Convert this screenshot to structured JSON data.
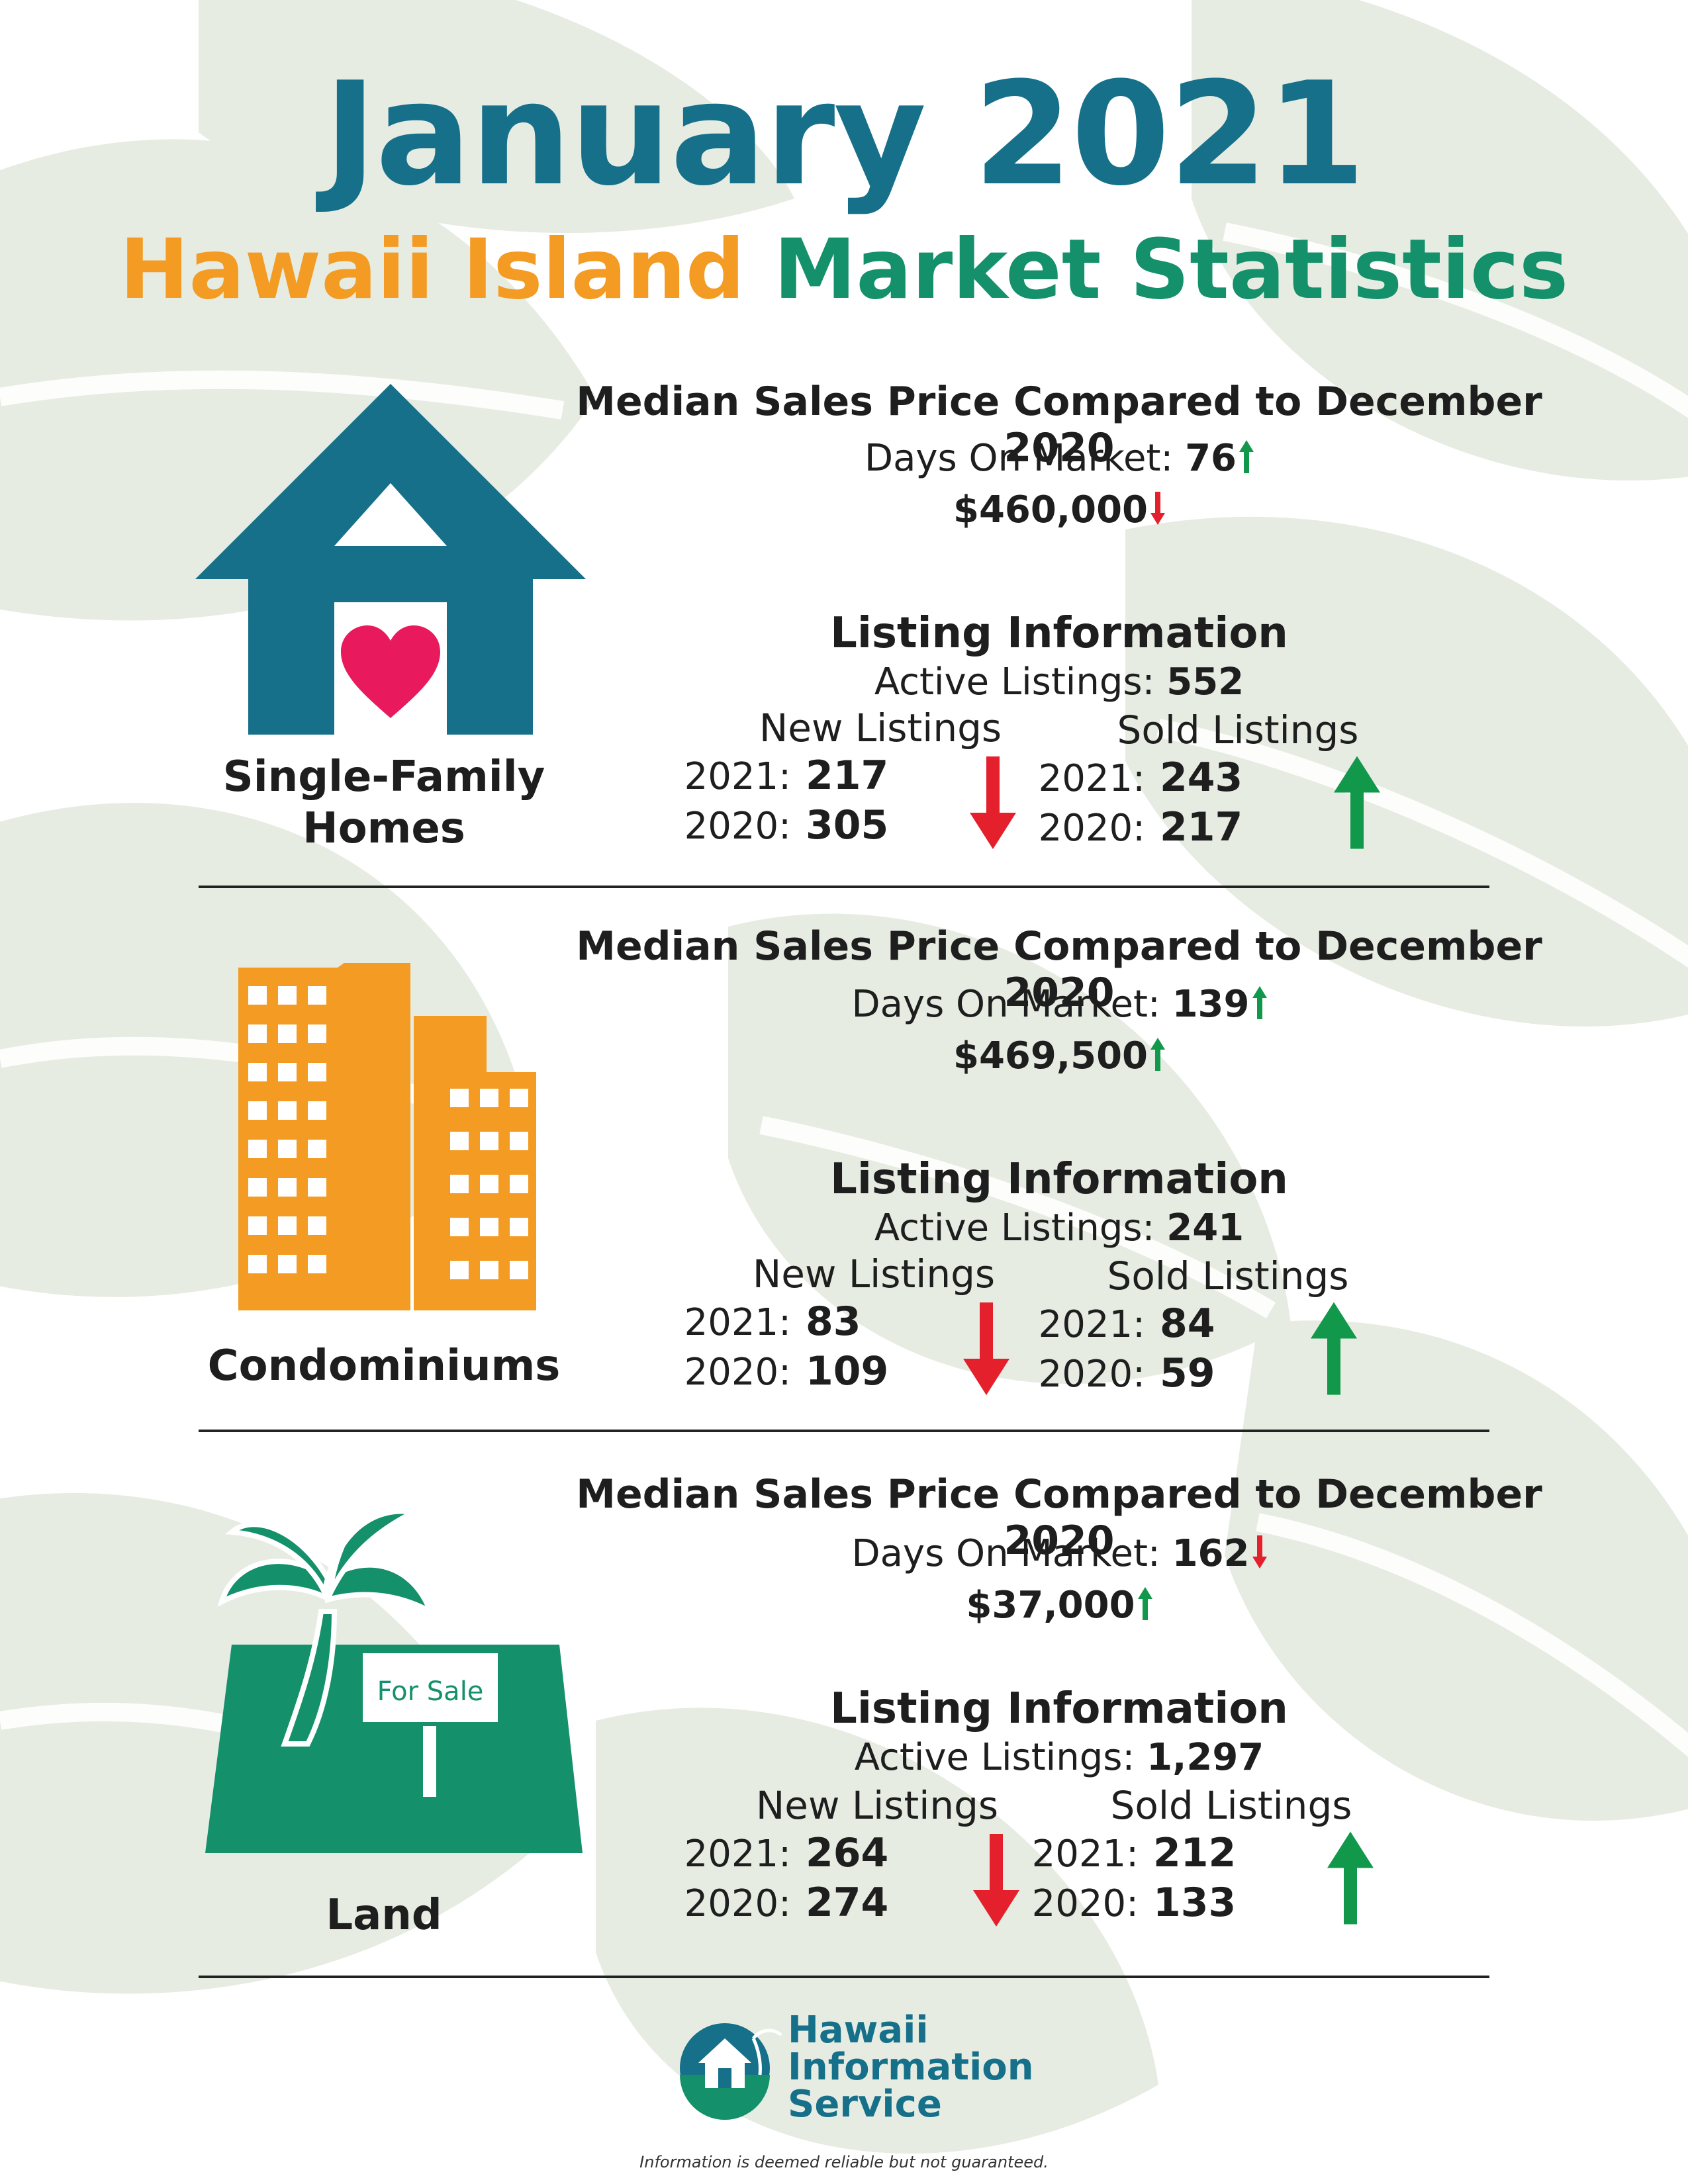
{
  "header": {
    "title": "January 2021",
    "subtitle_part1": "Hawaii Island",
    "subtitle_part2": "Market Statistics"
  },
  "colors": {
    "title_blue": "#17708a",
    "orange": "#f39b22",
    "green": "#14906b",
    "arrow_up": "#12984a",
    "arrow_down": "#e3202c",
    "heart": "#e9195e"
  },
  "sections": [
    {
      "category": "Single-Family Homes",
      "category_line1": "Single-Family",
      "category_line2": "Homes",
      "icon": "house-icon",
      "median_title": "Median Sales Price Compared to December 2020",
      "days_on_market_label": "Days On Market:",
      "days_on_market_value": "76",
      "days_on_market_trend": "up",
      "median_price": "$460,000",
      "median_price_trend": "down",
      "listing_title": "Listing Information",
      "active_label": "Active Listings:",
      "active_value": "552",
      "new_listings": {
        "label": "New Listings",
        "year1": "2021:",
        "value1": "217",
        "year2": "2020:",
        "value2": "305",
        "trend": "down"
      },
      "sold_listings": {
        "label": "Sold Listings",
        "year1": "2021:",
        "value1": "243",
        "year2": "2020:",
        "value2": "217",
        "trend": "up"
      }
    },
    {
      "category": "Condominiums",
      "icon": "condominium-buildings-icon",
      "median_title": "Median Sales Price Compared to December 2020",
      "days_on_market_label": "Days On Market:",
      "days_on_market_value": "139",
      "days_on_market_trend": "up",
      "median_price": "$469,500",
      "median_price_trend": "up",
      "listing_title": "Listing Information",
      "active_label": "Active Listings:",
      "active_value": "241",
      "new_listings": {
        "label": "New Listings",
        "year1": "2021:",
        "value1": "83",
        "year2": "2020:",
        "value2": "109",
        "trend": "down"
      },
      "sold_listings": {
        "label": "Sold Listings",
        "year1": "2021:",
        "value1": "84",
        "year2": "2020:",
        "value2": "59",
        "trend": "up"
      }
    },
    {
      "category": "Land",
      "icon": "palm-tree-land-icon",
      "sign_text": "For Sale",
      "median_title": "Median Sales Price Compared to December 2020",
      "days_on_market_label": "Days On Market:",
      "days_on_market_value": "162",
      "days_on_market_trend": "down",
      "median_price": "$37,000",
      "median_price_trend": "up",
      "listing_title": "Listing Information",
      "active_label": "Active Listings:",
      "active_value": "1,297",
      "new_listings": {
        "label": "New Listings",
        "year1": "2021:",
        "value1": "264",
        "year2": "2020:",
        "value2": "274",
        "trend": "down"
      },
      "sold_listings": {
        "label": "Sold Listings",
        "year1": "2021:",
        "value1": "212",
        "year2": "2020:",
        "value2": "133",
        "trend": "up"
      }
    }
  ],
  "footer": {
    "logo_line1": "Hawaii",
    "logo_line2": "Information",
    "logo_line3": "Service",
    "disclaimer": "Information is deemed reliable but not guaranteed."
  }
}
